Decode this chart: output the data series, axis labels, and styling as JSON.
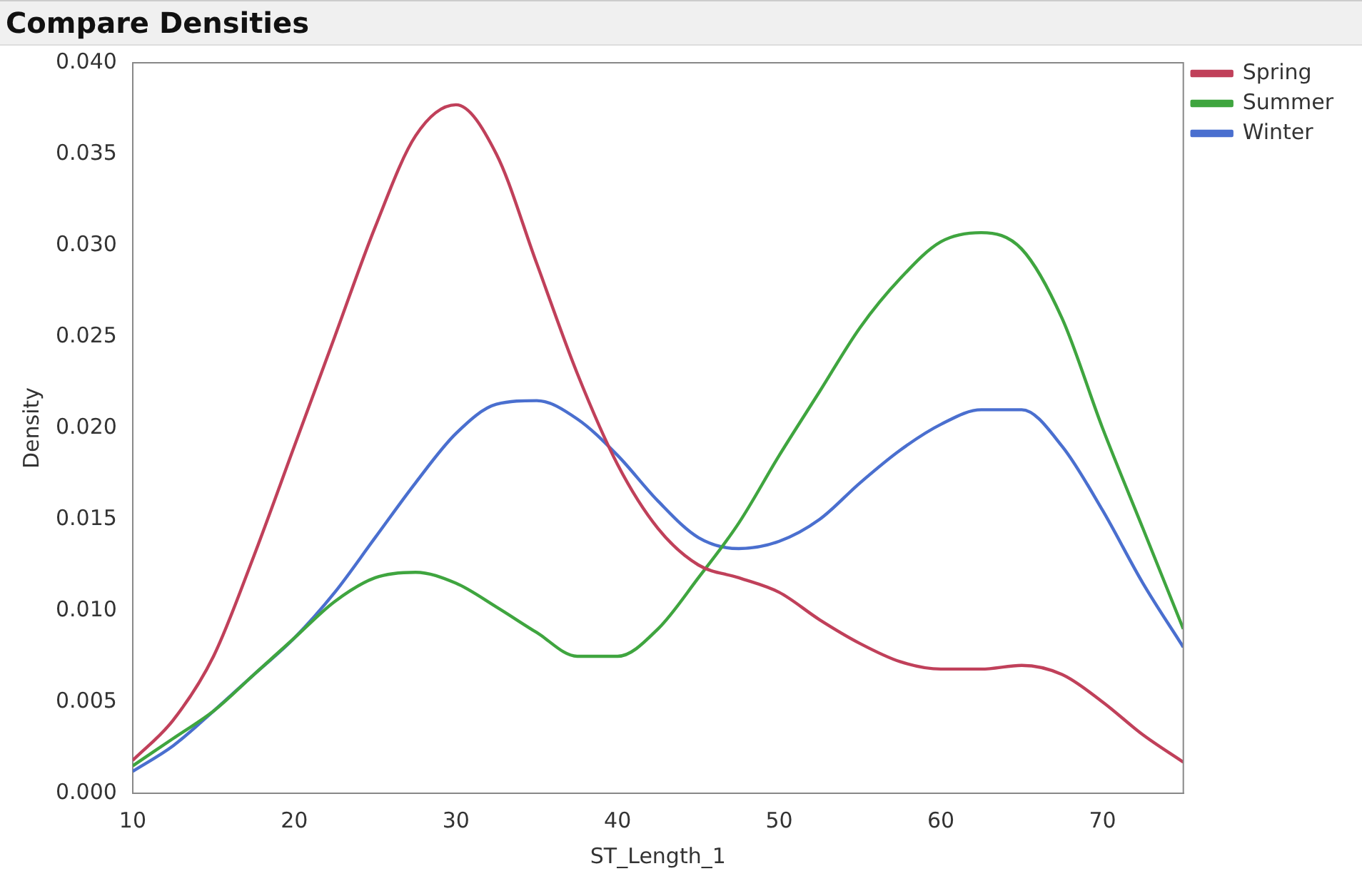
{
  "chart_data": {
    "type": "line",
    "title": "Compare Densities",
    "xlabel": "ST_Length_1",
    "ylabel": "Density",
    "x": [
      10,
      12.5,
      15,
      17.5,
      20,
      22.5,
      25,
      27.5,
      30,
      32.5,
      35,
      37.5,
      40,
      42.5,
      45,
      47.5,
      50,
      52.5,
      55,
      57.5,
      60,
      62.5,
      65,
      67.5,
      70,
      72.5,
      75
    ],
    "series": [
      {
        "name": "Spring",
        "color": "#c0405a",
        "values": [
          0.0018,
          0.004,
          0.0075,
          0.013,
          0.019,
          0.025,
          0.031,
          0.036,
          0.0377,
          0.035,
          0.029,
          0.023,
          0.018,
          0.0145,
          0.0125,
          0.0118,
          0.011,
          0.0095,
          0.0082,
          0.0072,
          0.0068,
          0.0068,
          0.007,
          0.0065,
          0.005,
          0.0032,
          0.0017
        ]
      },
      {
        "name": "Summer",
        "color": "#3fa53f",
        "values": [
          0.0015,
          0.003,
          0.0045,
          0.0065,
          0.0085,
          0.0105,
          0.0118,
          0.0121,
          0.0115,
          0.0102,
          0.0088,
          0.0075,
          0.0075,
          0.009,
          0.0118,
          0.0148,
          0.0185,
          0.022,
          0.0255,
          0.0282,
          0.0302,
          0.0307,
          0.0298,
          0.026,
          0.02,
          0.0145,
          0.009
        ]
      },
      {
        "name": "Winter",
        "color": "#4a6fcf",
        "values": [
          0.0012,
          0.0026,
          0.0045,
          0.0065,
          0.0085,
          0.011,
          0.014,
          0.017,
          0.0197,
          0.0213,
          0.0215,
          0.0205,
          0.0185,
          0.016,
          0.014,
          0.0134,
          0.0138,
          0.015,
          0.017,
          0.0188,
          0.0202,
          0.021,
          0.021,
          0.019,
          0.0155,
          0.0115,
          0.008
        ]
      }
    ],
    "xlim": [
      10,
      75
    ],
    "xticks": [
      10,
      20,
      30,
      40,
      50,
      60,
      70
    ],
    "ylim": [
      0,
      0.04
    ],
    "yticks": [
      {
        "value": 0,
        "label": "0.000"
      },
      {
        "value": 0.005,
        "label": "0.005"
      },
      {
        "value": 0.01,
        "label": "0.010"
      },
      {
        "value": 0.015,
        "label": "0.015"
      },
      {
        "value": 0.02,
        "label": "0.020"
      },
      {
        "value": 0.025,
        "label": "0.025"
      },
      {
        "value": 0.03,
        "label": "0.030"
      },
      {
        "value": 0.035,
        "label": "0.035"
      },
      {
        "value": 0.04,
        "label": "0.040"
      }
    ],
    "legend": "top right",
    "grid": false,
    "marker": "none",
    "line_style": "solid"
  }
}
